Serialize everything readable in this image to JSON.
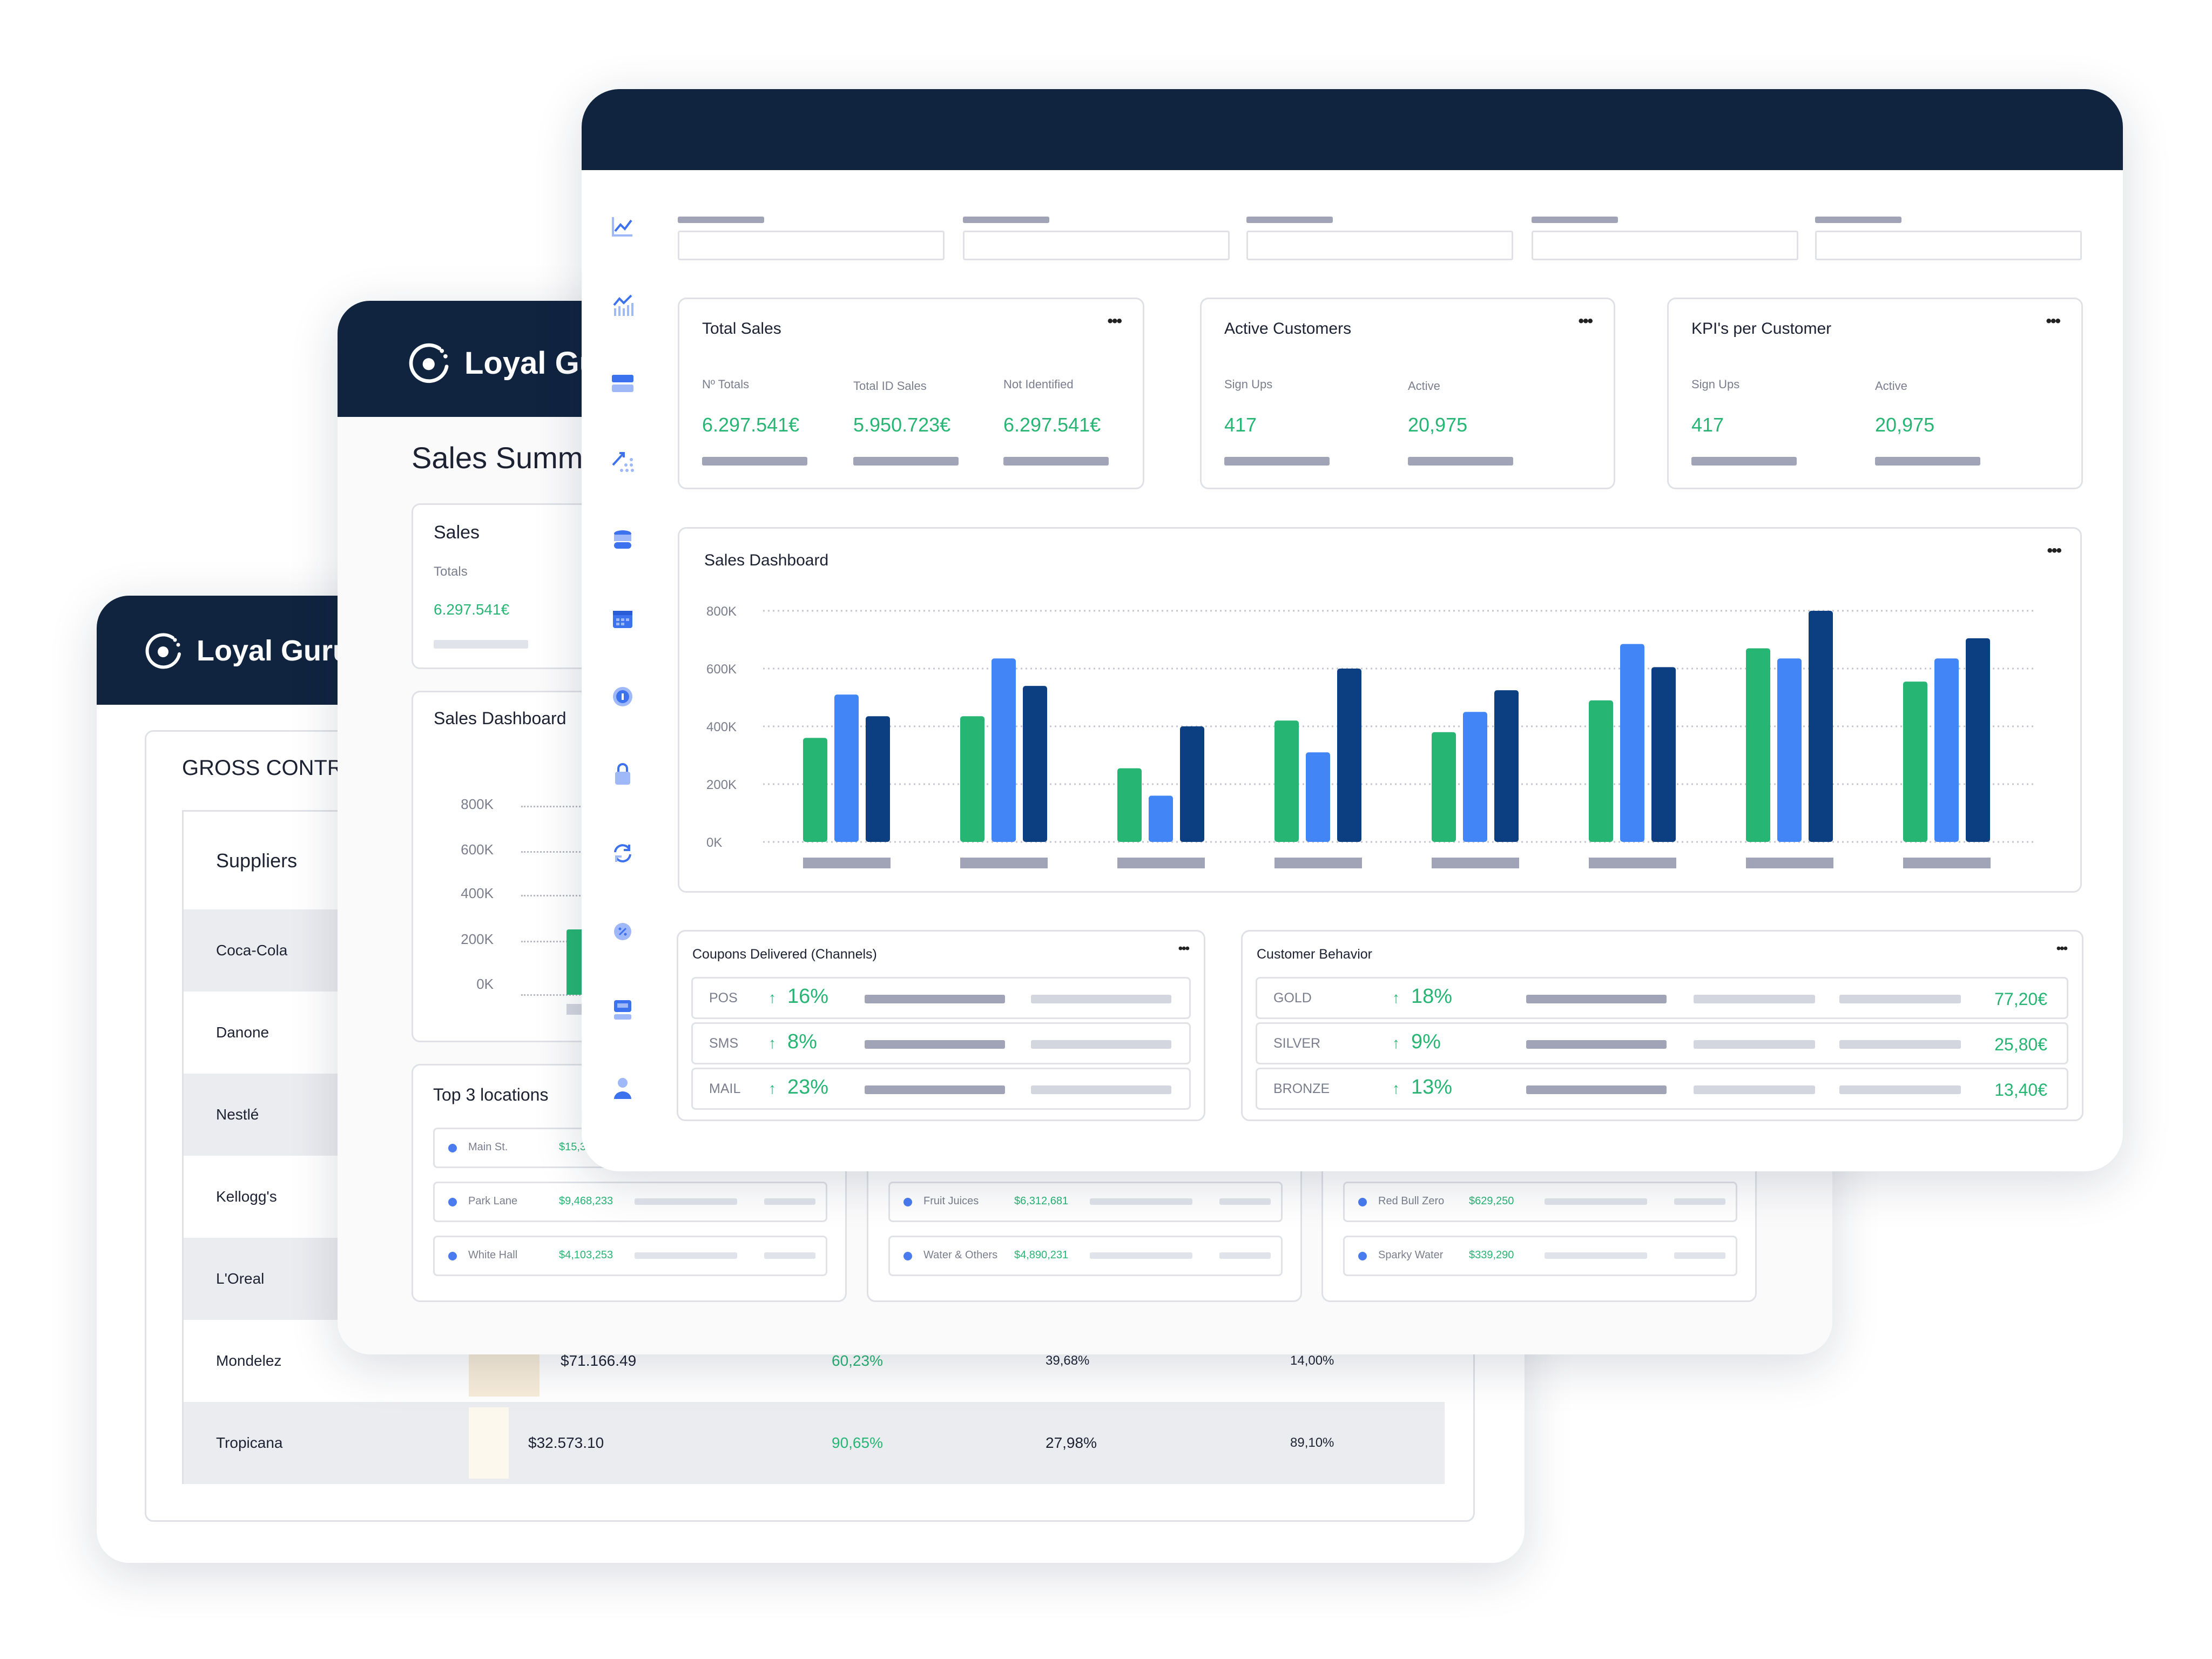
{
  "brand": "Loyal Guru",
  "colors": {
    "navy": "#102440",
    "green": "#27b574",
    "blue": "#4285f6",
    "dark_blue": "#0b3f82"
  },
  "back_card": {
    "section_title": "GROSS CONTRI",
    "table_header": "Suppliers",
    "rows": [
      {
        "supplier": "Coca-Cola"
      },
      {
        "supplier": "Danone"
      },
      {
        "supplier": "Nestlé"
      },
      {
        "supplier": "Kellogg's"
      },
      {
        "supplier": "L'Oreal"
      },
      {
        "supplier": "Mondelez",
        "value": "$71.166.49",
        "pct1": "60,23%",
        "pct2": "39,68%",
        "pct3": "14,00%"
      },
      {
        "supplier": "Tropicana",
        "value": "$32.573.10",
        "pct1": "90,65%",
        "pct2": "27,98%",
        "pct3": "89,10%"
      }
    ]
  },
  "middle_card": {
    "page_title": "Sales Summary",
    "sales": {
      "title": "Sales",
      "label": "Totals",
      "value": "6.297.541€"
    },
    "dashboard": {
      "title": "Sales Dashboard",
      "y_ticks": [
        "800K",
        "600K",
        "400K",
        "200K",
        "0K"
      ]
    },
    "top_locations": {
      "title": "Top 3 locations",
      "rows": [
        {
          "name": "Main St.",
          "value": "$15,3"
        },
        {
          "name": "Park Lane",
          "value": "$9,468,233"
        },
        {
          "name": "White Hall",
          "value": "$4,103,253"
        }
      ]
    },
    "panel2_rows": [
      {
        "name": "Fruit Juices",
        "value": "$6,312,681"
      },
      {
        "name": "Water & Others",
        "value": "$4,890,231"
      }
    ],
    "panel3_rows": [
      {
        "name": "Red Bull Zero",
        "value": "$629,250"
      },
      {
        "name": "Sparky Water",
        "value": "$339,290"
      }
    ]
  },
  "front_card": {
    "sidebar_icons": [
      "line-chart",
      "bar-chart",
      "card",
      "scatter-chart",
      "database",
      "calendar",
      "info",
      "shopping-bag",
      "refresh",
      "discount",
      "store",
      "user"
    ],
    "total_sales": {
      "title": "Total Sales",
      "cols": [
        {
          "label": "Nº Totals",
          "value": "6.297.541€"
        },
        {
          "label": "Total ID Sales",
          "value": "5.950.723€"
        },
        {
          "label": "Not Identified",
          "value": "6.297.541€"
        }
      ]
    },
    "active_customers": {
      "title": "Active Customers",
      "cols": [
        {
          "label": "Sign Ups",
          "value": "417"
        },
        {
          "label": "Active",
          "value": "20,975"
        }
      ]
    },
    "kpis": {
      "title": "KPI's per Customer",
      "cols": [
        {
          "label": "Sign Ups",
          "value": "417"
        },
        {
          "label": "Active",
          "value": "20,975"
        }
      ]
    },
    "coupons": {
      "title": "Coupons Delivered (Channels)",
      "rows": [
        {
          "label": "POS",
          "pct": "16%"
        },
        {
          "label": "SMS",
          "pct": "8%"
        },
        {
          "label": "MAIL",
          "pct": "23%"
        }
      ]
    },
    "behavior": {
      "title": "Customer Behavior",
      "rows": [
        {
          "label": "GOLD",
          "pct": "18%",
          "value": "77,20€"
        },
        {
          "label": "SILVER",
          "pct": "9%",
          "value": "25,80€"
        },
        {
          "label": "BRONZE",
          "pct": "13%",
          "value": "13,40€"
        }
      ]
    }
  },
  "chart_data": {
    "type": "bar",
    "title": "Sales Dashboard",
    "y_ticks": [
      "800K",
      "600K",
      "400K",
      "200K",
      "0K"
    ],
    "ylim": [
      0,
      800000
    ],
    "grid": true,
    "categories": [
      "",
      "",
      "",
      "",
      "",
      "",
      "",
      ""
    ],
    "series": [
      {
        "color": "#27b574",
        "values": [
          360000,
          435000,
          255000,
          420000,
          380000,
          490000,
          670000,
          555000
        ]
      },
      {
        "color": "#4285f6",
        "values": [
          510000,
          635000,
          160000,
          310000,
          450000,
          685000,
          635000,
          635000
        ]
      },
      {
        "color": "#0b3f82",
        "values": [
          435000,
          540000,
          400000,
          600000,
          525000,
          605000,
          800000,
          705000
        ]
      }
    ]
  }
}
